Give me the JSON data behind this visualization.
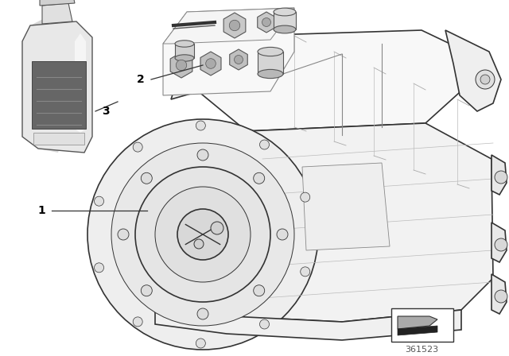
{
  "background_color": "#ffffff",
  "line_color": "#333333",
  "text_color": "#000000",
  "diagram_id": "361523",
  "label_1": "1",
  "label_2": "2",
  "label_3": "3",
  "font_size_labels": 10,
  "font_size_id": 8,
  "figsize": [
    6.4,
    4.48
  ],
  "dpi": 100
}
